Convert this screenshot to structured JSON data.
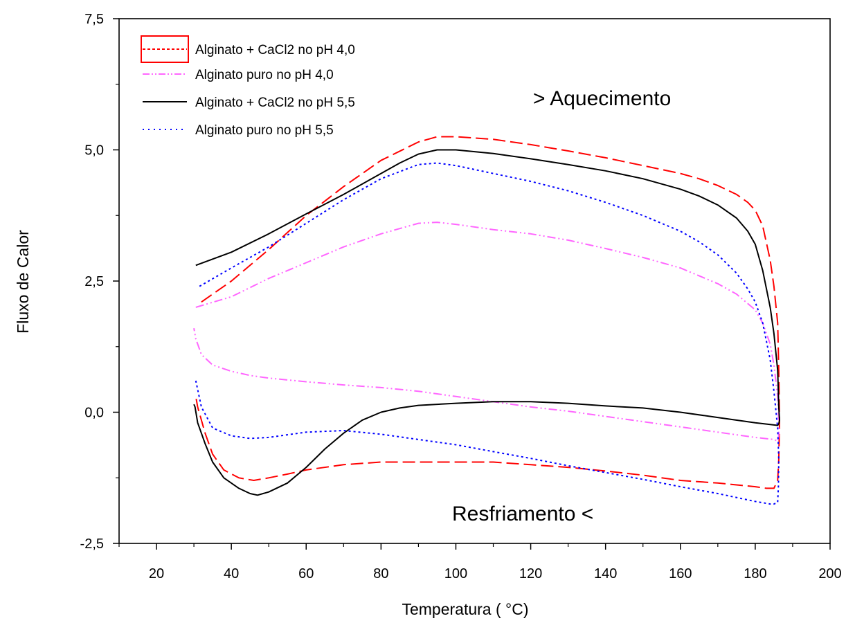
{
  "chart_data": {
    "type": "line",
    "title": "",
    "xlabel": "Temperatura  ( °C)",
    "ylabel": "Fluxo de Calor",
    "xlim": [
      10,
      200
    ],
    "ylim": [
      -2.5,
      7.5
    ],
    "xticks": [
      20,
      40,
      60,
      80,
      100,
      120,
      140,
      160,
      180,
      200
    ],
    "xtick_labels": [
      "20",
      "40",
      "60",
      "80",
      "100",
      "120",
      "140",
      "160",
      "180",
      "200"
    ],
    "yticks": [
      -2.5,
      0.0,
      2.5,
      5.0,
      7.5
    ],
    "ytick_labels": [
      "-2,5",
      "0,0",
      "2,5",
      "5,0",
      "7,5"
    ],
    "grid": false,
    "legend_position": "top-left",
    "annotations": [
      {
        "text": "> Aquecimento",
        "x": 123,
        "y": 5.95
      },
      {
        "text": "Resfriamento <",
        "x": 114,
        "y": -1.95
      }
    ],
    "series": [
      {
        "name": "Alginato + CaCl2 no pH 4,0",
        "color": "#ff0000",
        "style": "dashed",
        "x": [
          32,
          40,
          50,
          60,
          70,
          80,
          90,
          95,
          100,
          110,
          120,
          130,
          140,
          150,
          160,
          165,
          170,
          175,
          178,
          180,
          182,
          184,
          185,
          186,
          186.3,
          186.5,
          186.3,
          186,
          185,
          184,
          183,
          180,
          170,
          160,
          150,
          140,
          130,
          120,
          110,
          100,
          90,
          80,
          70,
          60,
          55,
          50,
          46,
          42,
          38,
          35,
          33,
          31,
          30.5
        ],
        "y": [
          2.1,
          2.5,
          3.1,
          3.75,
          4.3,
          4.8,
          5.15,
          5.25,
          5.25,
          5.2,
          5.1,
          4.98,
          4.85,
          4.7,
          4.55,
          4.45,
          4.32,
          4.15,
          4.0,
          3.85,
          3.55,
          2.9,
          2.4,
          1.7,
          0.8,
          -0.2,
          -0.9,
          -1.3,
          -1.45,
          -1.45,
          -1.45,
          -1.42,
          -1.35,
          -1.3,
          -1.2,
          -1.12,
          -1.05,
          -1.0,
          -0.95,
          -0.95,
          -0.95,
          -0.95,
          -1.0,
          -1.1,
          -1.18,
          -1.25,
          -1.3,
          -1.25,
          -1.1,
          -0.8,
          -0.4,
          0.1,
          0.3
        ]
      },
      {
        "name": "Alginato puro no pH 4,0",
        "color": "#ff66ff",
        "style": "dash-dot-dot",
        "x": [
          30.5,
          40,
          50,
          60,
          70,
          80,
          90,
          95,
          100,
          110,
          120,
          130,
          140,
          150,
          160,
          170,
          175,
          180,
          182,
          184,
          185,
          186,
          186.3,
          186.3,
          186,
          185,
          180,
          170,
          160,
          150,
          140,
          130,
          120,
          110,
          100,
          90,
          80,
          70,
          60,
          50,
          45,
          40,
          35,
          32,
          30.5,
          30
        ],
        "y": [
          2.0,
          2.2,
          2.55,
          2.85,
          3.15,
          3.4,
          3.6,
          3.62,
          3.58,
          3.48,
          3.4,
          3.28,
          3.12,
          2.95,
          2.75,
          2.45,
          2.25,
          1.95,
          1.7,
          1.3,
          0.9,
          0.3,
          -0.2,
          -0.45,
          -0.55,
          -0.52,
          -0.48,
          -0.38,
          -0.28,
          -0.18,
          -0.08,
          0.02,
          0.1,
          0.2,
          0.3,
          0.4,
          0.47,
          0.52,
          0.58,
          0.65,
          0.7,
          0.78,
          0.9,
          1.1,
          1.4,
          1.6
        ]
      },
      {
        "name": "Alginato + CaCl2 no pH 5,5",
        "color": "#000000",
        "style": "solid",
        "x": [
          30.5,
          40,
          50,
          60,
          70,
          80,
          85,
          90,
          95,
          100,
          110,
          120,
          130,
          140,
          150,
          160,
          165,
          170,
          175,
          178,
          180,
          182,
          184,
          185,
          186,
          186.3,
          186.5,
          186.3,
          186,
          180,
          170,
          160,
          150,
          140,
          130,
          120,
          110,
          100,
          90,
          85,
          80,
          75,
          70,
          65,
          60,
          55,
          50,
          47,
          45,
          42,
          38,
          35,
          33,
          31,
          30.3,
          30
        ],
        "y": [
          2.8,
          3.05,
          3.4,
          3.78,
          4.15,
          4.55,
          4.75,
          4.92,
          5.0,
          5.0,
          4.93,
          4.83,
          4.72,
          4.6,
          4.45,
          4.25,
          4.12,
          3.95,
          3.7,
          3.45,
          3.2,
          2.7,
          2.0,
          1.5,
          0.8,
          0.1,
          -0.15,
          -0.22,
          -0.25,
          -0.2,
          -0.1,
          0.0,
          0.08,
          0.12,
          0.17,
          0.2,
          0.2,
          0.17,
          0.13,
          0.08,
          0.0,
          -0.15,
          -0.4,
          -0.7,
          -1.05,
          -1.35,
          -1.52,
          -1.58,
          -1.55,
          -1.45,
          -1.25,
          -0.95,
          -0.6,
          -0.2,
          0.1,
          0.15
        ]
      },
      {
        "name": "Alginato puro no pH 5,5",
        "color": "#0000ff",
        "style": "dotted",
        "x": [
          31.5,
          40,
          50,
          60,
          70,
          80,
          90,
          95,
          100,
          110,
          120,
          130,
          140,
          150,
          160,
          165,
          170,
          175,
          178,
          180,
          182,
          184,
          185,
          186,
          186.3,
          186.2,
          186,
          185,
          184,
          180,
          170,
          160,
          150,
          140,
          130,
          120,
          110,
          100,
          90,
          80,
          70,
          60,
          50,
          45,
          40,
          35,
          32,
          30.5
        ],
        "y": [
          2.4,
          2.75,
          3.15,
          3.6,
          4.05,
          4.45,
          4.72,
          4.75,
          4.7,
          4.55,
          4.4,
          4.22,
          4.0,
          3.75,
          3.45,
          3.25,
          3.0,
          2.65,
          2.35,
          2.1,
          1.7,
          1.0,
          0.4,
          -0.3,
          -0.9,
          -1.4,
          -1.72,
          -1.75,
          -1.75,
          -1.7,
          -1.55,
          -1.42,
          -1.28,
          -1.15,
          -1.02,
          -0.88,
          -0.75,
          -0.62,
          -0.52,
          -0.42,
          -0.35,
          -0.38,
          -0.48,
          -0.5,
          -0.45,
          -0.3,
          0.1,
          0.6
        ]
      }
    ]
  }
}
